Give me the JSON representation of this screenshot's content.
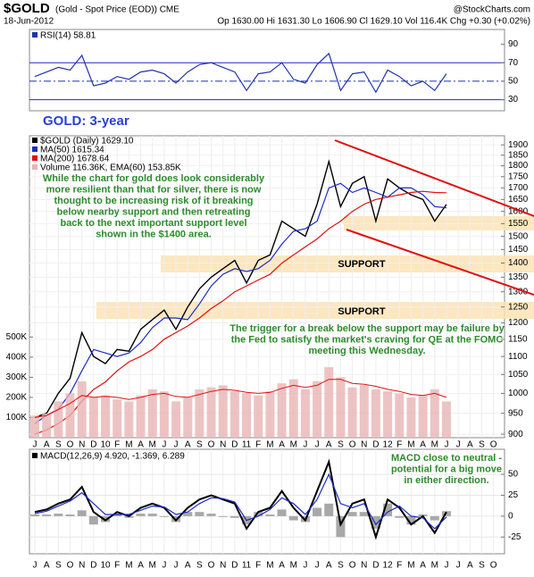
{
  "header": {
    "title": "$GOLD",
    "subtitle": "(Gold - Spot Price (EOD)) CME",
    "source": "@StockCharts.com",
    "date": "18-Jun-2012",
    "quote": "Op 1630.00 Hi 1631.30 Lo 1606.90 Cl 1629.10 Vol 116.4K Chg +0.30 (+0.02%)"
  },
  "chart_data": [
    {
      "type": "line",
      "ylim": [
        18,
        106
      ],
      "yticks": [
        30,
        50,
        70,
        90
      ],
      "reference_lines": [
        30,
        50,
        70
      ],
      "series": [
        {
          "name": "RSI(14) 58.81",
          "color": "#2233aa",
          "values": [
            55,
            60,
            65,
            62,
            78,
            45,
            48,
            55,
            52,
            60,
            62,
            58,
            48,
            60,
            68,
            70,
            65,
            60,
            40,
            58,
            60,
            70,
            52,
            48,
            68,
            80,
            40,
            58,
            60,
            38,
            62,
            55,
            45,
            50,
            40,
            58,
            null,
            null,
            null,
            null
          ]
        }
      ]
    },
    {
      "type": "line",
      "log": true,
      "ylim": [
        892,
        1945
      ],
      "yticks": [
        900,
        950,
        1000,
        1050,
        1100,
        1150,
        1200,
        1250,
        1300,
        1350,
        1400,
        1450,
        1500,
        1550,
        1600,
        1650,
        1700,
        1750,
        1800,
        1850,
        1900
      ],
      "categories": [
        "J",
        "A",
        "S",
        "O",
        "N",
        "D",
        "10",
        "F",
        "M",
        "A",
        "M",
        "J",
        "J",
        "A",
        "S",
        "O",
        "N",
        "D",
        "11",
        "F",
        "M",
        "A",
        "M",
        "J",
        "J",
        "A",
        "S",
        "O",
        "N",
        "D",
        "12",
        "F",
        "M",
        "A",
        "M",
        "J",
        "J",
        "A",
        "S",
        "O"
      ],
      "series": [
        {
          "name": "$GOLD (Daily) 1629.10",
          "color": "#000000",
          "values": [
            940,
            950,
            1000,
            1040,
            1170,
            1100,
            1080,
            1120,
            1115,
            1180,
            1210,
            1240,
            1180,
            1250,
            1310,
            1350,
            1380,
            1410,
            1330,
            1410,
            1430,
            1560,
            1530,
            1500,
            1630,
            1820,
            1620,
            1720,
            1750,
            1560,
            1740,
            1700,
            1670,
            1650,
            1560,
            1629,
            null,
            null,
            null,
            null
          ]
        },
        {
          "name": "MA(50) 1615.34",
          "color": "#1a2cc8",
          "values": [
            925,
            945,
            960,
            1000,
            1060,
            1120,
            1110,
            1100,
            1110,
            1140,
            1185,
            1215,
            1215,
            1210,
            1260,
            1320,
            1360,
            1380,
            1370,
            1380,
            1410,
            1470,
            1520,
            1530,
            1560,
            1700,
            1720,
            1680,
            1700,
            1680,
            1660,
            1700,
            1700,
            1670,
            1620,
            1615,
            null,
            null,
            null,
            null
          ]
        },
        {
          "name": "MA(200) 1678.64",
          "color": "#e01010",
          "values": [
            900,
            910,
            925,
            945,
            980,
            1010,
            1030,
            1060,
            1085,
            1100,
            1120,
            1150,
            1170,
            1190,
            1215,
            1245,
            1270,
            1300,
            1320,
            1340,
            1360,
            1400,
            1430,
            1460,
            1490,
            1530,
            1560,
            1600,
            1630,
            1650,
            1660,
            1670,
            1680,
            1685,
            1680,
            1679,
            null,
            null,
            null,
            null
          ]
        }
      ],
      "annotations": [
        "GOLD: 3-year",
        [
          "While the chart for gold does look considerably",
          "more resilient than that for silver, there is now",
          "thought to be increasing risk of it breaking",
          "below nearby support and then retreating",
          "back to the next important support level",
          "shown in the $1400 area."
        ],
        "SUPPORT",
        "SUPPORT",
        [
          "The trigger for a break below the support may be failure by",
          "the Fed to satisfy the market's craving for QE at the FOMC",
          "meeting this Wednesday."
        ]
      ]
    },
    {
      "type": "bar",
      "ylim": [
        0,
        1500000
      ],
      "yticks": [
        {
          "value": 100000,
          "label": "100K"
        },
        {
          "value": 200000,
          "label": "200K"
        },
        {
          "value": 300000,
          "label": "300K"
        },
        {
          "value": 400000,
          "label": "400K"
        },
        {
          "value": 500000,
          "label": "500K"
        }
      ],
      "series": [
        {
          "name": "Volume 116.36K, EMA(60) 153.85K",
          "color": "#e8b4b4",
          "values": [
            110000,
            120000,
            180000,
            220000,
            280000,
            200000,
            210000,
            190000,
            180000,
            210000,
            240000,
            230000,
            180000,
            200000,
            240000,
            250000,
            260000,
            230000,
            220000,
            210000,
            230000,
            270000,
            290000,
            240000,
            280000,
            350000,
            300000,
            250000,
            260000,
            240000,
            230000,
            220000,
            200000,
            210000,
            240000,
            180000,
            null,
            null,
            null,
            null
          ]
        }
      ],
      "ema": {
        "color": "#e01010",
        "values": [
          100000,
          110000,
          140000,
          170000,
          210000,
          200000,
          205000,
          200000,
          190000,
          200000,
          215000,
          220000,
          205000,
          200000,
          215000,
          230000,
          240000,
          235000,
          225000,
          220000,
          225000,
          245000,
          260000,
          250000,
          260000,
          290000,
          290000,
          270000,
          265000,
          255000,
          240000,
          230000,
          215000,
          210000,
          220000,
          200000,
          null,
          null,
          null,
          null
        ]
      }
    },
    {
      "type": "macd",
      "ylim": [
        -45,
        80
      ],
      "yticks": [
        -25,
        0,
        25,
        50
      ],
      "categories": [
        "J",
        "A",
        "S",
        "O",
        "N",
        "D",
        "10",
        "F",
        "M",
        "A",
        "M",
        "J",
        "J",
        "A",
        "S",
        "O",
        "N",
        "D",
        "11",
        "F",
        "M",
        "A",
        "M",
        "J",
        "J",
        "A",
        "S",
        "O",
        "N",
        "D",
        "12",
        "F",
        "M",
        "A",
        "M",
        "J",
        "J",
        "A",
        "S",
        "O"
      ],
      "legend": "MACD(12,26,9) 4.920, -1.369, 6.289",
      "series": [
        {
          "color": "#000000",
          "values": [
            5,
            8,
            15,
            20,
            35,
            5,
            -5,
            5,
            0,
            10,
            15,
            10,
            -5,
            10,
            20,
            25,
            20,
            15,
            -15,
            5,
            10,
            30,
            10,
            -5,
            30,
            65,
            -10,
            15,
            20,
            -25,
            20,
            10,
            -10,
            0,
            -20,
            5,
            null,
            null,
            null,
            null
          ]
        },
        {
          "color": "#1a2cc8",
          "values": [
            3,
            6,
            12,
            18,
            28,
            15,
            2,
            2,
            2,
            7,
            12,
            11,
            2,
            5,
            15,
            22,
            21,
            17,
            -5,
            0,
            8,
            22,
            15,
            2,
            20,
            50,
            15,
            10,
            15,
            -10,
            5,
            12,
            0,
            -2,
            -15,
            -1,
            null,
            null,
            null,
            null
          ]
        }
      ],
      "histogram": {
        "color": "#a8a8a8",
        "values": [
          2,
          2,
          3,
          2,
          7,
          -10,
          -7,
          3,
          -2,
          3,
          3,
          -1,
          -7,
          5,
          5,
          3,
          -1,
          -2,
          -10,
          5,
          2,
          8,
          -5,
          -7,
          10,
          15,
          -25,
          5,
          5,
          -15,
          15,
          -2,
          -10,
          2,
          -5,
          6,
          null,
          null,
          null,
          null
        ]
      },
      "annotations": [
        [
          "MACD close to neutral -",
          "potential for a big move",
          "in either direction."
        ]
      ]
    }
  ]
}
